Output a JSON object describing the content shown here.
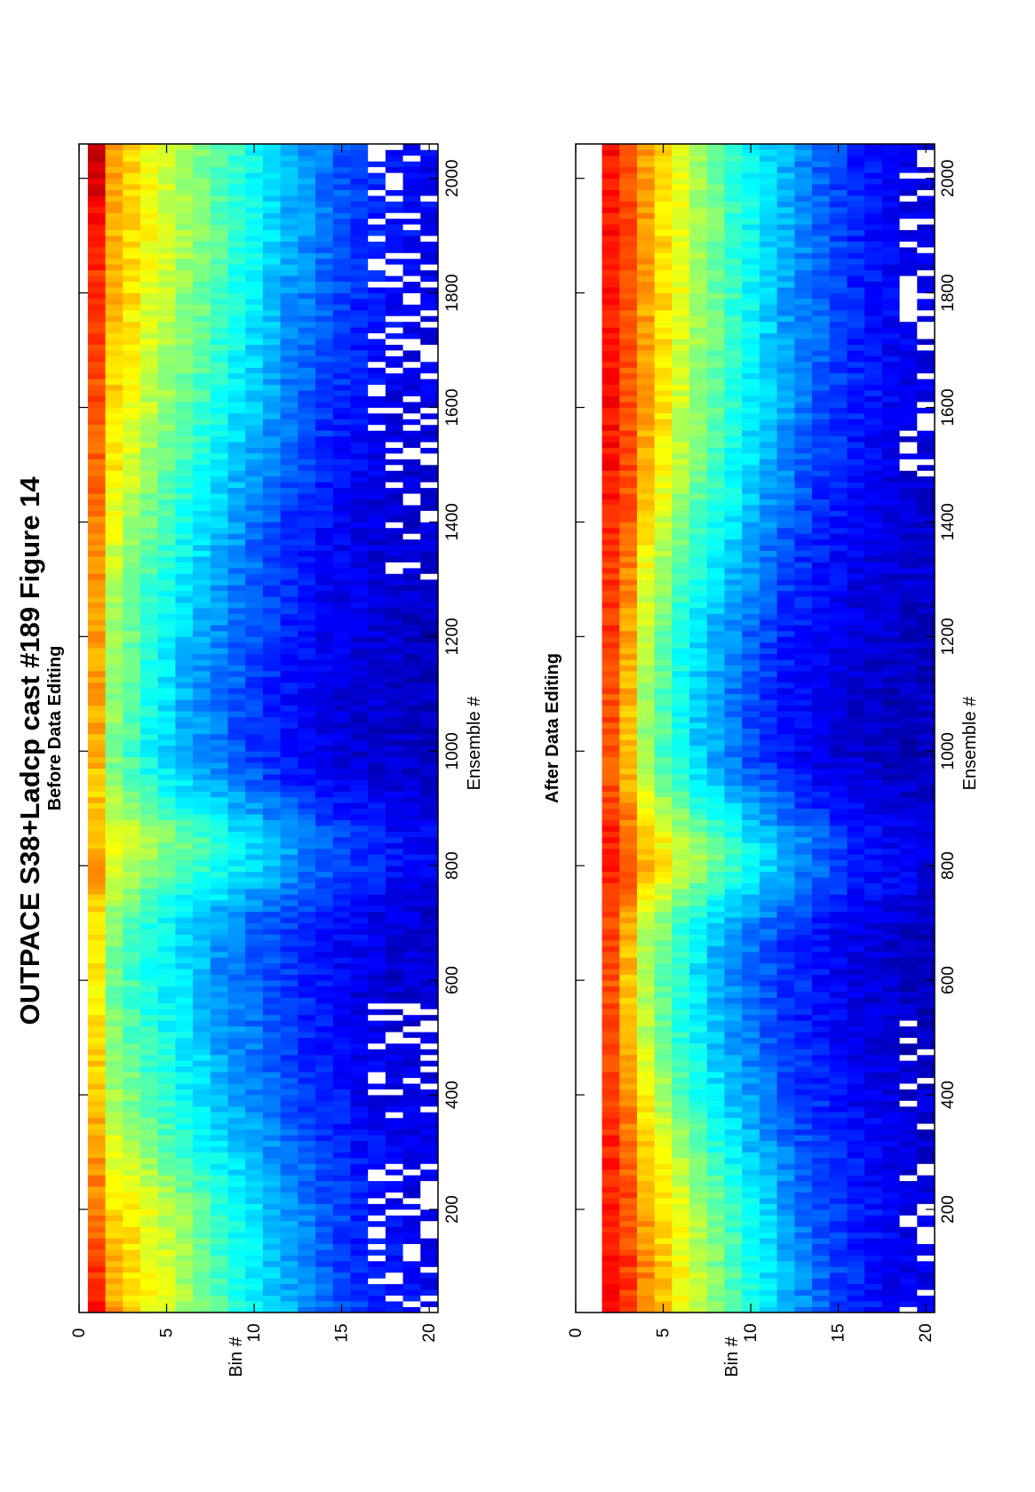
{
  "figure": {
    "title": "OUTPACE S38+Ladcp cast #189  Figure 14"
  },
  "chart_data": [
    {
      "type": "heatmap",
      "title": "Before Data Editing",
      "xlabel": "Ensemble #",
      "ylabel": "Bin #",
      "xlim": [
        20,
        2060
      ],
      "ylim": [
        0,
        20.5
      ],
      "xticks": [
        200,
        400,
        600,
        800,
        1000,
        1200,
        1400,
        1600,
        1800,
        2000
      ],
      "yticks": [
        0,
        5,
        10,
        15,
        20
      ],
      "y_reversed": true,
      "orientation": "rotated-90-ccw",
      "colormap": "jet",
      "first_bin": 1,
      "last_bin": 20,
      "missing_color": "#ffffff",
      "ensemble_knots": [
        20,
        100,
        200,
        300,
        400,
        500,
        600,
        680,
        720,
        760,
        800,
        850,
        900,
        950,
        1000,
        1100,
        1200,
        1300,
        1400,
        1500,
        1600,
        1700,
        1800,
        1900,
        2000,
        2060
      ],
      "bin_knots": [
        1,
        2,
        4,
        6,
        8,
        10,
        12,
        14,
        16,
        18,
        20
      ],
      "values": [
        [
          0.88,
          0.82,
          0.76,
          0.72,
          0.68,
          0.66,
          0.64,
          0.64,
          0.66,
          0.7,
          0.72,
          0.7,
          0.68,
          0.68,
          0.7,
          0.72,
          0.72,
          0.74,
          0.76,
          0.78,
          0.8,
          0.8,
          0.82,
          0.84,
          0.92,
          0.96
        ],
        [
          0.72,
          0.7,
          0.66,
          0.6,
          0.54,
          0.5,
          0.48,
          0.5,
          0.52,
          0.56,
          0.6,
          0.6,
          0.56,
          0.5,
          0.5,
          0.52,
          0.54,
          0.56,
          0.6,
          0.64,
          0.66,
          0.68,
          0.7,
          0.7,
          0.72,
          0.74
        ],
        [
          0.62,
          0.62,
          0.6,
          0.52,
          0.44,
          0.42,
          0.4,
          0.4,
          0.42,
          0.46,
          0.52,
          0.54,
          0.48,
          0.4,
          0.38,
          0.4,
          0.42,
          0.44,
          0.48,
          0.52,
          0.56,
          0.58,
          0.6,
          0.62,
          0.62,
          0.62
        ],
        [
          0.54,
          0.54,
          0.52,
          0.42,
          0.38,
          0.36,
          0.34,
          0.34,
          0.36,
          0.4,
          0.46,
          0.48,
          0.4,
          0.34,
          0.3,
          0.3,
          0.32,
          0.36,
          0.4,
          0.44,
          0.48,
          0.5,
          0.52,
          0.54,
          0.54,
          0.54
        ],
        [
          0.46,
          0.44,
          0.42,
          0.36,
          0.32,
          0.28,
          0.26,
          0.28,
          0.3,
          0.36,
          0.4,
          0.4,
          0.34,
          0.28,
          0.24,
          0.24,
          0.26,
          0.28,
          0.32,
          0.36,
          0.4,
          0.42,
          0.44,
          0.46,
          0.46,
          0.46
        ],
        [
          0.38,
          0.36,
          0.34,
          0.3,
          0.26,
          0.24,
          0.22,
          0.22,
          0.24,
          0.3,
          0.34,
          0.34,
          0.28,
          0.22,
          0.18,
          0.18,
          0.2,
          0.22,
          0.24,
          0.28,
          0.32,
          0.34,
          0.36,
          0.38,
          0.38,
          0.38
        ],
        [
          0.3,
          0.28,
          0.28,
          0.24,
          0.2,
          0.18,
          0.18,
          0.18,
          0.2,
          0.24,
          0.28,
          0.28,
          0.22,
          0.16,
          0.14,
          0.14,
          0.16,
          0.16,
          0.18,
          0.22,
          0.24,
          0.26,
          0.28,
          0.3,
          0.3,
          0.3
        ],
        [
          0.24,
          0.22,
          0.22,
          0.18,
          0.16,
          0.14,
          0.14,
          0.14,
          0.16,
          0.2,
          0.22,
          0.22,
          0.18,
          0.12,
          0.1,
          0.1,
          0.12,
          0.12,
          0.14,
          0.16,
          0.18,
          0.2,
          0.22,
          0.24,
          0.24,
          0.24
        ],
        [
          0.18,
          0.16,
          0.16,
          0.14,
          0.12,
          0.1,
          0.1,
          0.12,
          0.12,
          0.16,
          0.18,
          0.18,
          0.14,
          0.1,
          0.08,
          0.08,
          0.1,
          0.1,
          0.1,
          0.12,
          0.14,
          0.16,
          0.16,
          0.18,
          0.18,
          0.18
        ],
        [
          0.14,
          0.14,
          0.12,
          0.12,
          0.1,
          0.1,
          0.08,
          0.1,
          0.1,
          0.12,
          0.14,
          0.14,
          0.12,
          0.08,
          0.08,
          0.08,
          0.08,
          0.08,
          0.08,
          0.1,
          0.1,
          0.12,
          0.12,
          0.14,
          0.14,
          0.14
        ],
        [
          0.12,
          0.12,
          0.1,
          0.1,
          0.1,
          0.08,
          0.08,
          0.08,
          0.08,
          0.1,
          0.12,
          0.12,
          0.1,
          0.08,
          0.06,
          0.06,
          0.06,
          0.08,
          0.08,
          0.08,
          0.1,
          0.1,
          0.1,
          0.12,
          0.12,
          0.12
        ]
      ],
      "missing_ranges": [
        {
          "from": 20,
          "to": 280,
          "min_bin": 17
        },
        {
          "from": 360,
          "to": 560,
          "min_bin": 17
        },
        {
          "from": 1300,
          "to": 1550,
          "min_bin": 18
        },
        {
          "from": 1550,
          "to": 1900,
          "min_bin": 17
        },
        {
          "from": 1850,
          "to": 2060,
          "min_bin": 17
        }
      ]
    },
    {
      "type": "heatmap",
      "title": "After Data Editing",
      "xlabel": "Ensemble #",
      "ylabel": "Bin #",
      "xlim": [
        20,
        2060
      ],
      "ylim": [
        0,
        20.5
      ],
      "xticks": [
        200,
        400,
        600,
        800,
        1000,
        1200,
        1400,
        1600,
        1800,
        2000
      ],
      "yticks": [
        0,
        5,
        10,
        15,
        20
      ],
      "y_reversed": true,
      "orientation": "rotated-90-ccw",
      "colormap": "jet",
      "first_bin": 2,
      "last_bin": 20,
      "missing_color": "#ffffff",
      "ensemble_knots": [
        20,
        100,
        200,
        300,
        400,
        500,
        600,
        680,
        720,
        760,
        800,
        850,
        900,
        950,
        1000,
        1100,
        1200,
        1300,
        1400,
        1500,
        1600,
        1700,
        1800,
        1900,
        2000,
        2060
      ],
      "bin_knots": [
        2,
        3,
        4,
        6,
        8,
        10,
        12,
        14,
        16,
        18,
        20
      ],
      "values": [
        [
          0.86,
          0.86,
          0.84,
          0.84,
          0.82,
          0.8,
          0.8,
          0.8,
          0.82,
          0.84,
          0.86,
          0.84,
          0.82,
          0.8,
          0.8,
          0.8,
          0.82,
          0.82,
          0.84,
          0.86,
          0.86,
          0.86,
          0.86,
          0.86,
          0.86,
          0.86
        ],
        [
          0.82,
          0.82,
          0.8,
          0.78,
          0.74,
          0.7,
          0.68,
          0.7,
          0.72,
          0.76,
          0.8,
          0.78,
          0.74,
          0.7,
          0.68,
          0.7,
          0.72,
          0.74,
          0.78,
          0.8,
          0.8,
          0.8,
          0.8,
          0.8,
          0.8,
          0.8
        ],
        [
          0.74,
          0.74,
          0.72,
          0.68,
          0.62,
          0.56,
          0.54,
          0.56,
          0.6,
          0.66,
          0.7,
          0.68,
          0.62,
          0.56,
          0.52,
          0.54,
          0.56,
          0.6,
          0.66,
          0.7,
          0.72,
          0.72,
          0.72,
          0.72,
          0.72,
          0.72
        ],
        [
          0.62,
          0.62,
          0.6,
          0.54,
          0.46,
          0.42,
          0.4,
          0.42,
          0.46,
          0.52,
          0.58,
          0.56,
          0.48,
          0.42,
          0.38,
          0.38,
          0.4,
          0.44,
          0.5,
          0.56,
          0.58,
          0.58,
          0.6,
          0.6,
          0.6,
          0.6
        ],
        [
          0.5,
          0.5,
          0.48,
          0.42,
          0.36,
          0.32,
          0.3,
          0.32,
          0.36,
          0.42,
          0.48,
          0.46,
          0.38,
          0.32,
          0.28,
          0.28,
          0.3,
          0.34,
          0.4,
          0.44,
          0.46,
          0.48,
          0.48,
          0.48,
          0.48,
          0.48
        ],
        [
          0.4,
          0.4,
          0.38,
          0.32,
          0.28,
          0.24,
          0.22,
          0.24,
          0.28,
          0.34,
          0.38,
          0.36,
          0.3,
          0.24,
          0.2,
          0.2,
          0.22,
          0.26,
          0.3,
          0.34,
          0.36,
          0.38,
          0.38,
          0.38,
          0.38,
          0.38
        ],
        [
          0.3,
          0.3,
          0.28,
          0.24,
          0.2,
          0.18,
          0.18,
          0.18,
          0.22,
          0.26,
          0.3,
          0.28,
          0.22,
          0.18,
          0.14,
          0.14,
          0.16,
          0.18,
          0.22,
          0.26,
          0.28,
          0.28,
          0.28,
          0.3,
          0.3,
          0.3
        ],
        [
          0.22,
          0.22,
          0.2,
          0.18,
          0.16,
          0.14,
          0.14,
          0.14,
          0.16,
          0.2,
          0.22,
          0.22,
          0.16,
          0.12,
          0.1,
          0.1,
          0.12,
          0.14,
          0.16,
          0.18,
          0.2,
          0.22,
          0.22,
          0.22,
          0.22,
          0.22
        ],
        [
          0.16,
          0.16,
          0.16,
          0.14,
          0.12,
          0.1,
          0.1,
          0.1,
          0.12,
          0.14,
          0.16,
          0.16,
          0.12,
          0.1,
          0.08,
          0.08,
          0.1,
          0.1,
          0.12,
          0.14,
          0.16,
          0.16,
          0.16,
          0.16,
          0.16,
          0.16
        ],
        [
          0.12,
          0.12,
          0.12,
          0.1,
          0.1,
          0.08,
          0.08,
          0.08,
          0.1,
          0.12,
          0.12,
          0.12,
          0.1,
          0.08,
          0.06,
          0.06,
          0.08,
          0.08,
          0.1,
          0.1,
          0.12,
          0.12,
          0.12,
          0.12,
          0.12,
          0.12
        ],
        [
          0.1,
          0.1,
          0.1,
          0.08,
          0.08,
          0.06,
          0.06,
          0.06,
          0.08,
          0.1,
          0.1,
          0.1,
          0.08,
          0.06,
          0.06,
          0.06,
          0.06,
          0.08,
          0.08,
          0.08,
          0.1,
          0.1,
          0.1,
          0.1,
          0.1,
          0.1
        ]
      ],
      "missing_ranges": [
        {
          "from": 20,
          "to": 560,
          "min_bin": 19
        },
        {
          "from": 1450,
          "to": 2060,
          "min_bin": 19
        }
      ]
    }
  ]
}
